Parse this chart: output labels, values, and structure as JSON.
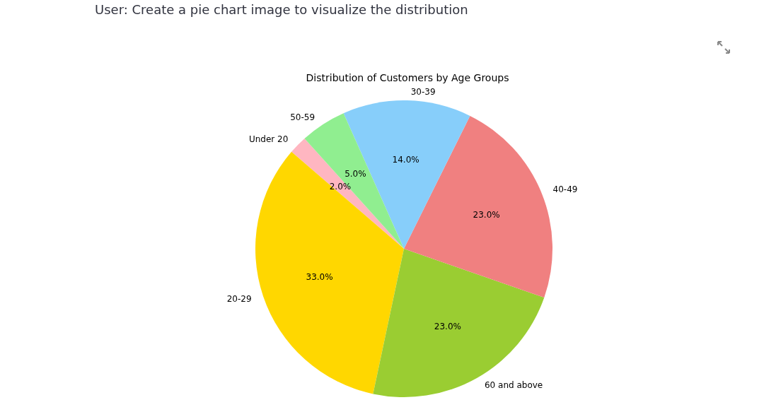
{
  "chart_data": {
    "type": "pie",
    "title": "Distribution of Customers by Age Groups",
    "annotations": [
      "User: Create a pie chart image to visualize the distribution"
    ],
    "categories": [
      "Under 20",
      "20-29",
      "60 and above",
      "40-49",
      "30-39",
      "50-59"
    ],
    "values": [
      2,
      33,
      23,
      23,
      14,
      5
    ],
    "value_labels": [
      "2.0%",
      "33.0%",
      "23.0%",
      "23.0%",
      "14.0%",
      "5.0%"
    ],
    "colors": [
      "#ffb6c1",
      "#ffd700",
      "#9acd32",
      "#f08080",
      "#87cefa",
      "#90ee90"
    ],
    "legend": false
  }
}
